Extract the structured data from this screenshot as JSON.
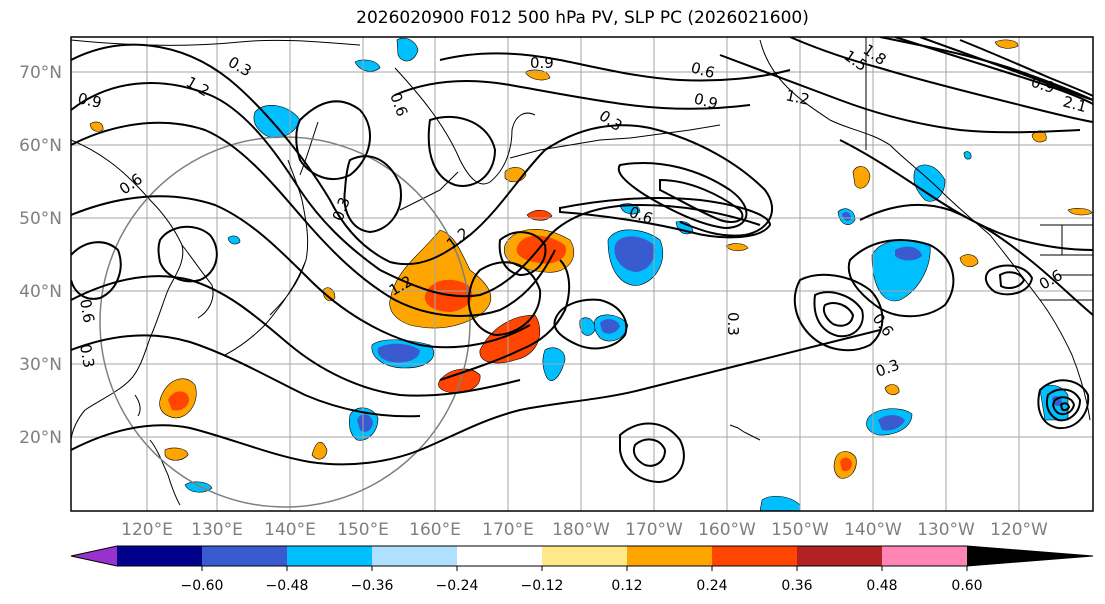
{
  "title": "2026020900 F012 500 hPa PV, SLP PC (2026021600)",
  "latitude_labels": [
    "70°N",
    "60°N",
    "50°N",
    "40°N",
    "30°N",
    "20°N"
  ],
  "longitude_labels": [
    "120°E",
    "130°E",
    "140°E",
    "150°E",
    "160°E",
    "170°E",
    "180°W",
    "170°W",
    "160°W",
    "150°W",
    "140°W",
    "130°W",
    "120°W"
  ],
  "colorbar": {
    "ticks": [
      "−0.60",
      "−0.48",
      "−0.36",
      "−0.24",
      "−0.12",
      "0.12",
      "0.24",
      "0.36",
      "0.48",
      "0.60"
    ],
    "colors": [
      "#9932cc",
      "#00008b",
      "#3a5bcf",
      "#00bfff",
      "#b0e0ff",
      "#ffffff",
      "#ffe98a",
      "#ffa500",
      "#ff4500",
      "#b22222",
      "#ff85b4"
    ]
  },
  "contour_labels": [
    "0.3",
    "0.6",
    "0.9",
    "1.2",
    "1.5",
    "1.8",
    "2.1",
    "0.6",
    "0.9",
    "1.2",
    "0.3",
    "0.6",
    "0.9",
    "1.2",
    "1.2",
    "0.3",
    "0.3",
    "0.6",
    "0.9",
    "0.6",
    "0.3",
    "0.6",
    "0.3",
    "0.6"
  ]
}
